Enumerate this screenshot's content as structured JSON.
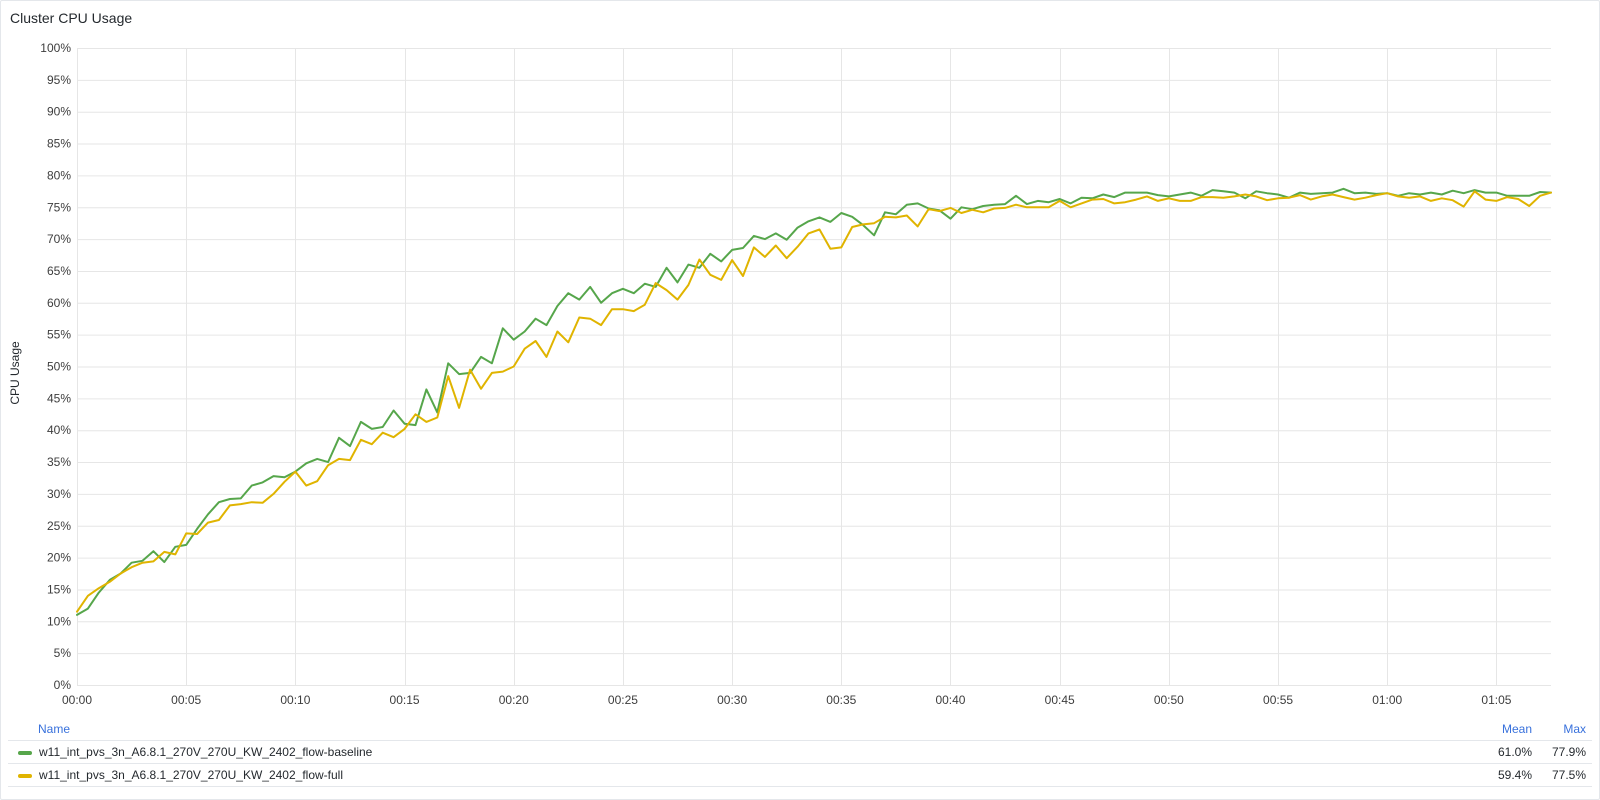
{
  "panel": {
    "title": "Cluster CPU Usage"
  },
  "legend": {
    "headers": {
      "name": "Name",
      "mean": "Mean",
      "max": "Max"
    }
  },
  "chart_data": {
    "type": "line",
    "title": "Cluster CPU Usage",
    "ylabel": "CPU Usage",
    "xlabel": "",
    "x_unit": "minutes",
    "xlim": [
      0,
      67.5
    ],
    "ylim": [
      0,
      100
    ],
    "x_ticks": [
      {
        "v": 0,
        "label": "00:00"
      },
      {
        "v": 5,
        "label": "00:05"
      },
      {
        "v": 10,
        "label": "00:10"
      },
      {
        "v": 15,
        "label": "00:15"
      },
      {
        "v": 20,
        "label": "00:20"
      },
      {
        "v": 25,
        "label": "00:25"
      },
      {
        "v": 30,
        "label": "00:30"
      },
      {
        "v": 35,
        "label": "00:35"
      },
      {
        "v": 40,
        "label": "00:40"
      },
      {
        "v": 45,
        "label": "00:45"
      },
      {
        "v": 50,
        "label": "00:50"
      },
      {
        "v": 55,
        "label": "00:55"
      },
      {
        "v": 60,
        "label": "01:00"
      },
      {
        "v": 65,
        "label": "01:05"
      }
    ],
    "y_ticks": [
      {
        "v": 0,
        "label": "0%"
      },
      {
        "v": 5,
        "label": "5%"
      },
      {
        "v": 10,
        "label": "10%"
      },
      {
        "v": 15,
        "label": "15%"
      },
      {
        "v": 20,
        "label": "20%"
      },
      {
        "v": 25,
        "label": "25%"
      },
      {
        "v": 30,
        "label": "30%"
      },
      {
        "v": 35,
        "label": "35%"
      },
      {
        "v": 40,
        "label": "40%"
      },
      {
        "v": 45,
        "label": "45%"
      },
      {
        "v": 50,
        "label": "50%"
      },
      {
        "v": 55,
        "label": "55%"
      },
      {
        "v": 60,
        "label": "60%"
      },
      {
        "v": 65,
        "label": "65%"
      },
      {
        "v": 70,
        "label": "70%"
      },
      {
        "v": 75,
        "label": "75%"
      },
      {
        "v": 80,
        "label": "80%"
      },
      {
        "v": 85,
        "label": "85%"
      },
      {
        "v": 90,
        "label": "90%"
      },
      {
        "v": 95,
        "label": "95%"
      },
      {
        "v": 100,
        "label": "100%"
      }
    ],
    "grid": true,
    "legend_position": "bottom",
    "series": [
      {
        "name": "w11_int_pvs_3n_A6.8.1_270V_270U_KW_2402_flow-baseline",
        "color": "#56a64b",
        "mean": "61.0%",
        "max": "77.9%",
        "points": [
          [
            0,
            11
          ],
          [
            0.5,
            12
          ],
          [
            1,
            14.5
          ],
          [
            1.5,
            16.5
          ],
          [
            2,
            17.5
          ],
          [
            2.5,
            19.2
          ],
          [
            3,
            19.5
          ],
          [
            3.5,
            21
          ],
          [
            4,
            19.3
          ],
          [
            4.5,
            21.7
          ],
          [
            5,
            22
          ],
          [
            5.5,
            24.5
          ],
          [
            6,
            26.8
          ],
          [
            6.5,
            28.7
          ],
          [
            7,
            29.2
          ],
          [
            7.5,
            29.3
          ],
          [
            8,
            31.3
          ],
          [
            8.5,
            31.8
          ],
          [
            9,
            32.8
          ],
          [
            9.5,
            32.6
          ],
          [
            10,
            33.5
          ],
          [
            10.5,
            34.8
          ],
          [
            11,
            35.5
          ],
          [
            11.5,
            35
          ],
          [
            12,
            38.8
          ],
          [
            12.5,
            37.5
          ],
          [
            13,
            41.3
          ],
          [
            13.5,
            40.2
          ],
          [
            14,
            40.5
          ],
          [
            14.5,
            43.1
          ],
          [
            15,
            41
          ],
          [
            15.5,
            40.8
          ],
          [
            16,
            46.4
          ],
          [
            16.5,
            42.8
          ],
          [
            17,
            50.5
          ],
          [
            17.5,
            48.8
          ],
          [
            18,
            49
          ],
          [
            18.5,
            51.5
          ],
          [
            19,
            50.5
          ],
          [
            19.5,
            56
          ],
          [
            20,
            54.2
          ],
          [
            20.5,
            55.5
          ],
          [
            21,
            57.5
          ],
          [
            21.5,
            56.5
          ],
          [
            22,
            59.5
          ],
          [
            22.5,
            61.5
          ],
          [
            23,
            60.5
          ],
          [
            23.5,
            62.5
          ],
          [
            24,
            60
          ],
          [
            24.5,
            61.5
          ],
          [
            25,
            62.2
          ],
          [
            25.5,
            61.5
          ],
          [
            26,
            63
          ],
          [
            26.5,
            62.5
          ],
          [
            27,
            65.5
          ],
          [
            27.5,
            63.2
          ],
          [
            28,
            66
          ],
          [
            28.5,
            65.5
          ],
          [
            29,
            67.7
          ],
          [
            29.5,
            66.5
          ],
          [
            30,
            68.3
          ],
          [
            30.5,
            68.6
          ],
          [
            31,
            70.5
          ],
          [
            31.5,
            70
          ],
          [
            32,
            70.9
          ],
          [
            32.5,
            69.9
          ],
          [
            33,
            71.8
          ],
          [
            33.5,
            72.8
          ],
          [
            34,
            73.4
          ],
          [
            34.5,
            72.7
          ],
          [
            35,
            74.1
          ],
          [
            35.5,
            73.5
          ],
          [
            36,
            72.2
          ],
          [
            36.5,
            70.6
          ],
          [
            37,
            74.2
          ],
          [
            37.5,
            73.9
          ],
          [
            38,
            75.4
          ],
          [
            38.5,
            75.6
          ],
          [
            39,
            74.8
          ],
          [
            39.5,
            74.5
          ],
          [
            40,
            73.2
          ],
          [
            40.5,
            75
          ],
          [
            41,
            74.7
          ],
          [
            41.5,
            75.2
          ],
          [
            42,
            75.4
          ],
          [
            42.5,
            75.5
          ],
          [
            43,
            76.8
          ],
          [
            43.5,
            75.5
          ],
          [
            44,
            76
          ],
          [
            44.5,
            75.8
          ],
          [
            45,
            76.3
          ],
          [
            45.5,
            75.6
          ],
          [
            46,
            76.5
          ],
          [
            46.5,
            76.4
          ],
          [
            47,
            77
          ],
          [
            47.5,
            76.6
          ],
          [
            48,
            77.3
          ],
          [
            48.5,
            77.3
          ],
          [
            49,
            77.3
          ],
          [
            49.5,
            76.9
          ],
          [
            50,
            76.7
          ],
          [
            50.5,
            77
          ],
          [
            51,
            77.3
          ],
          [
            51.5,
            76.8
          ],
          [
            52,
            77.7
          ],
          [
            52.5,
            77.5
          ],
          [
            53,
            77.3
          ],
          [
            53.5,
            76.4
          ],
          [
            54,
            77.5
          ],
          [
            54.5,
            77.2
          ],
          [
            55,
            77
          ],
          [
            55.5,
            76.5
          ],
          [
            56,
            77.3
          ],
          [
            56.5,
            77.1
          ],
          [
            57,
            77.2
          ],
          [
            57.5,
            77.3
          ],
          [
            58,
            77.9
          ],
          [
            58.5,
            77.2
          ],
          [
            59,
            77.3
          ],
          [
            59.5,
            77.1
          ],
          [
            60,
            77.2
          ],
          [
            60.5,
            76.8
          ],
          [
            61,
            77.2
          ],
          [
            61.5,
            77
          ],
          [
            62,
            77.3
          ],
          [
            62.5,
            77
          ],
          [
            63,
            77.6
          ],
          [
            63.5,
            77.2
          ],
          [
            64,
            77.7
          ],
          [
            64.5,
            77.3
          ],
          [
            65,
            77.3
          ],
          [
            65.5,
            76.8
          ],
          [
            66,
            76.8
          ],
          [
            66.5,
            76.8
          ],
          [
            67,
            77.4
          ],
          [
            67.5,
            77.3
          ]
        ]
      },
      {
        "name": "w11_int_pvs_3n_A6.8.1_270V_270U_KW_2402_flow-full",
        "color": "#e0b400",
        "mean": "59.4%",
        "max": "77.5%",
        "points": [
          [
            0,
            11.5
          ],
          [
            0.5,
            14
          ],
          [
            1,
            15.2
          ],
          [
            1.5,
            16.2
          ],
          [
            2,
            17.5
          ],
          [
            2.5,
            18.5
          ],
          [
            3,
            19.2
          ],
          [
            3.5,
            19.4
          ],
          [
            4,
            20.9
          ],
          [
            4.5,
            20.5
          ],
          [
            5,
            23.8
          ],
          [
            5.5,
            23.7
          ],
          [
            6,
            25.5
          ],
          [
            6.5,
            25.9
          ],
          [
            7,
            28.2
          ],
          [
            7.5,
            28.4
          ],
          [
            8,
            28.7
          ],
          [
            8.5,
            28.6
          ],
          [
            9,
            30
          ],
          [
            9.5,
            31.9
          ],
          [
            10,
            33.5
          ],
          [
            10.5,
            31.3
          ],
          [
            11,
            32
          ],
          [
            11.5,
            34.5
          ],
          [
            12,
            35.5
          ],
          [
            12.5,
            35.3
          ],
          [
            13,
            38.5
          ],
          [
            13.5,
            37.8
          ],
          [
            14,
            39.6
          ],
          [
            14.5,
            38.9
          ],
          [
            15,
            40.2
          ],
          [
            15.5,
            42.5
          ],
          [
            16,
            41.3
          ],
          [
            16.5,
            42
          ],
          [
            17,
            48.5
          ],
          [
            17.5,
            43.5
          ],
          [
            18,
            49.5
          ],
          [
            18.5,
            46.5
          ],
          [
            19,
            49
          ],
          [
            19.5,
            49.2
          ],
          [
            20,
            50
          ],
          [
            20.5,
            52.8
          ],
          [
            21,
            54
          ],
          [
            21.5,
            51.5
          ],
          [
            22,
            55.5
          ],
          [
            22.5,
            53.8
          ],
          [
            23,
            57.7
          ],
          [
            23.5,
            57.5
          ],
          [
            24,
            56.5
          ],
          [
            24.5,
            59
          ],
          [
            25,
            59
          ],
          [
            25.5,
            58.7
          ],
          [
            26,
            59.7
          ],
          [
            26.5,
            63.1
          ],
          [
            27,
            62
          ],
          [
            27.5,
            60.5
          ],
          [
            28,
            62.8
          ],
          [
            28.5,
            66.8
          ],
          [
            29,
            64.4
          ],
          [
            29.5,
            63.6
          ],
          [
            30,
            66.7
          ],
          [
            30.5,
            64.2
          ],
          [
            31,
            68.7
          ],
          [
            31.5,
            67.2
          ],
          [
            32,
            69
          ],
          [
            32.5,
            67
          ],
          [
            33,
            68.8
          ],
          [
            33.5,
            70.9
          ],
          [
            34,
            71.5
          ],
          [
            34.5,
            68.5
          ],
          [
            35,
            68.7
          ],
          [
            35.5,
            71.9
          ],
          [
            36,
            72.3
          ],
          [
            36.5,
            72.5
          ],
          [
            37,
            73.5
          ],
          [
            37.5,
            73.4
          ],
          [
            38,
            73.7
          ],
          [
            38.5,
            72
          ],
          [
            39,
            74.7
          ],
          [
            39.5,
            74.4
          ],
          [
            40,
            74.9
          ],
          [
            40.5,
            74.1
          ],
          [
            41,
            74.6
          ],
          [
            41.5,
            74.2
          ],
          [
            42,
            74.8
          ],
          [
            42.5,
            74.9
          ],
          [
            43,
            75.4
          ],
          [
            43.5,
            75
          ],
          [
            44,
            75
          ],
          [
            44.5,
            75
          ],
          [
            45,
            76
          ],
          [
            45.5,
            75
          ],
          [
            46,
            75.6
          ],
          [
            46.5,
            76.2
          ],
          [
            47,
            76.3
          ],
          [
            47.5,
            75.6
          ],
          [
            48,
            75.8
          ],
          [
            48.5,
            76.2
          ],
          [
            49,
            76.7
          ],
          [
            49.5,
            76
          ],
          [
            50,
            76.4
          ],
          [
            50.5,
            76
          ],
          [
            51,
            76
          ],
          [
            51.5,
            76.6
          ],
          [
            52,
            76.6
          ],
          [
            52.5,
            76.5
          ],
          [
            53,
            76.7
          ],
          [
            53.5,
            77
          ],
          [
            54,
            76.7
          ],
          [
            54.5,
            76.1
          ],
          [
            55,
            76.4
          ],
          [
            55.5,
            76.5
          ],
          [
            56,
            76.9
          ],
          [
            56.5,
            76.2
          ],
          [
            57,
            76.7
          ],
          [
            57.5,
            77
          ],
          [
            58,
            76.6
          ],
          [
            58.5,
            76.2
          ],
          [
            59,
            76.5
          ],
          [
            59.5,
            76.9
          ],
          [
            60,
            77.2
          ],
          [
            60.5,
            76.7
          ],
          [
            61,
            76.5
          ],
          [
            61.5,
            76.7
          ],
          [
            62,
            76
          ],
          [
            62.5,
            76.4
          ],
          [
            63,
            76.1
          ],
          [
            63.5,
            75.1
          ],
          [
            64,
            77.5
          ],
          [
            64.5,
            76.2
          ],
          [
            65,
            76
          ],
          [
            65.5,
            76.6
          ],
          [
            66,
            76.3
          ],
          [
            66.5,
            75.2
          ],
          [
            67,
            76.8
          ],
          [
            67.5,
            77.3
          ]
        ]
      }
    ]
  }
}
